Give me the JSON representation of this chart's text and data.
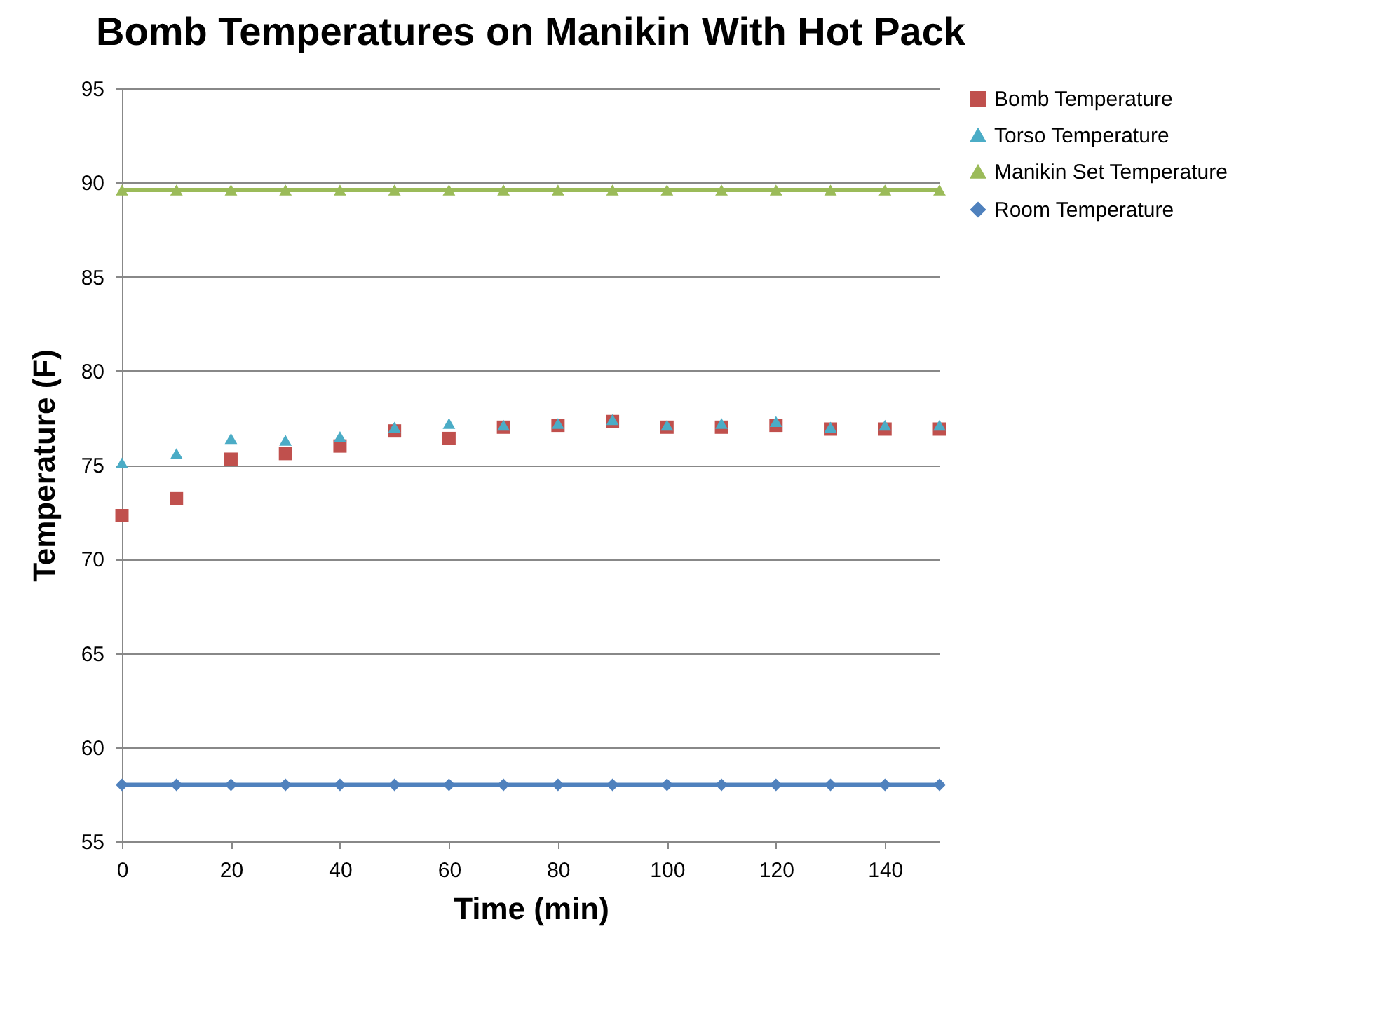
{
  "chart_data": {
    "type": "scatter",
    "title": "Bomb Temperatures on Manikin With Hot Pack",
    "xlabel": "Time (min)",
    "ylabel": "Temperature (F)",
    "x": [
      0,
      10,
      20,
      30,
      40,
      50,
      60,
      70,
      80,
      90,
      100,
      110,
      120,
      130,
      140,
      150
    ],
    "series": [
      {
        "name": "Bomb Temperature",
        "marker": "square",
        "color": "#c0504d",
        "values": [
          72.3,
          73.2,
          75.3,
          75.6,
          76.0,
          76.8,
          76.4,
          77.0,
          77.1,
          77.3,
          77.0,
          77.0,
          77.1,
          76.9,
          76.9,
          76.9
        ]
      },
      {
        "name": "Torso Temperature",
        "marker": "triangle",
        "color": "#4bacc6",
        "values": [
          75.1,
          75.6,
          76.4,
          76.3,
          76.5,
          77.0,
          77.2,
          77.1,
          77.2,
          77.4,
          77.1,
          77.2,
          77.3,
          77.0,
          77.1,
          77.1
        ]
      },
      {
        "name": "Manikin Set Temperature",
        "type": "line",
        "marker": "triangle",
        "color": "#9bbb59",
        "values": [
          89.6,
          89.6,
          89.6,
          89.6,
          89.6,
          89.6,
          89.6,
          89.6,
          89.6,
          89.6,
          89.6,
          89.6,
          89.6,
          89.6,
          89.6,
          89.6
        ]
      },
      {
        "name": "Room Temperature",
        "type": "line",
        "marker": "diamond",
        "color": "#4f81bd",
        "values": [
          58,
          58,
          58,
          58,
          58,
          58,
          58,
          58,
          58,
          58,
          58,
          58,
          58,
          58,
          58,
          58
        ]
      }
    ],
    "xlim": [
      0,
      150
    ],
    "xticks": [
      0,
      20,
      40,
      60,
      80,
      100,
      120,
      140
    ],
    "ylim": [
      55,
      95
    ],
    "yticks": [
      55,
      60,
      65,
      70,
      75,
      80,
      85,
      90,
      95
    ],
    "grid": "y",
    "legend": "right"
  }
}
